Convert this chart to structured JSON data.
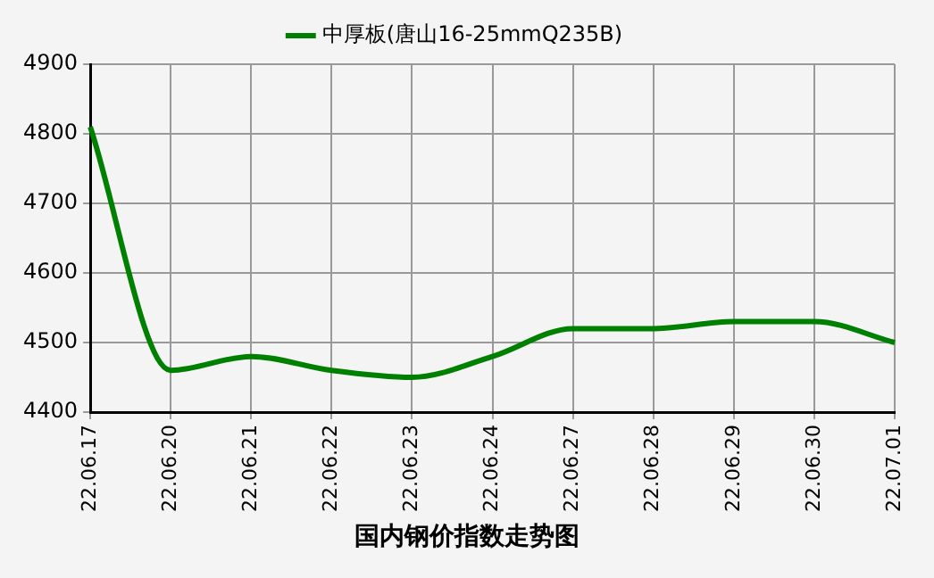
{
  "chart_data": {
    "type": "line",
    "title": "国内钢价指数走势图",
    "categories": [
      "22.06.17",
      "22.06.20",
      "22.06.21",
      "22.06.22",
      "22.06.23",
      "22.06.24",
      "22.06.27",
      "22.06.28",
      "22.06.29",
      "22.06.30",
      "22.07.01"
    ],
    "series": [
      {
        "name": "中厚板(唐山16-25mmQ235B)",
        "color": "#008000",
        "values": [
          4810,
          4460,
          4480,
          4460,
          4450,
          4480,
          4520,
          4520,
          4530,
          4530,
          4500
        ]
      }
    ],
    "ylim": [
      4400,
      4900
    ],
    "yticks": [
      4400,
      4500,
      4600,
      4700,
      4800,
      4900
    ],
    "grid": true,
    "legend": "top",
    "marker": "none",
    "line_style": "solid"
  }
}
